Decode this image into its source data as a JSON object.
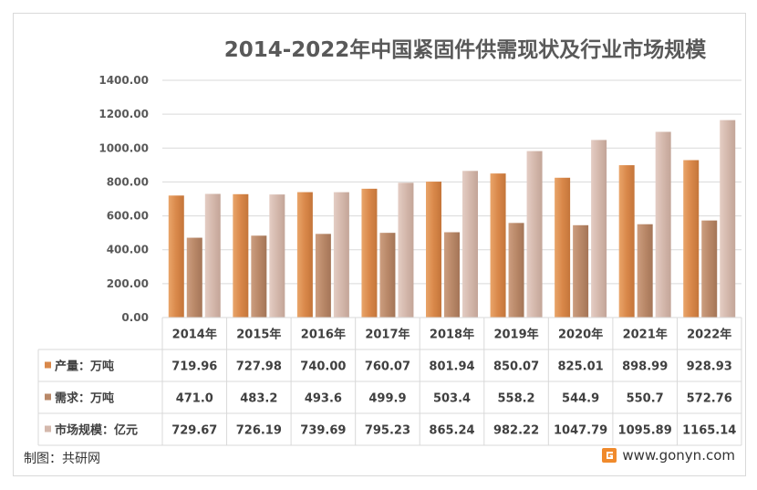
{
  "chart_data": {
    "type": "bar",
    "title": "2014-2022年中国紧固件供需现状及行业市场规模",
    "categories": [
      "2014年",
      "2015年",
      "2016年",
      "2017年",
      "2018年",
      "2019年",
      "2020年",
      "2021年",
      "2022年"
    ],
    "ylim": [
      0,
      1400
    ],
    "yticks": [
      "0.00",
      "200.00",
      "400.00",
      "600.00",
      "800.00",
      "1000.00",
      "1200.00",
      "1400.00"
    ],
    "grid": true,
    "legend_placement": "table-rows-below",
    "series": [
      {
        "name": "产量：万吨",
        "color": "#d9884a",
        "values": [
          719.96,
          727.98,
          740.0,
          760.07,
          801.94,
          850.07,
          825.01,
          898.99,
          928.93
        ],
        "labels": [
          "719.96",
          "727.98",
          "740.00",
          "760.07",
          "801.94",
          "850.07",
          "825.01",
          "898.99",
          "928.93"
        ]
      },
      {
        "name": "需求：万吨",
        "color": "#b98868",
        "values": [
          471.0,
          483.2,
          493.6,
          499.9,
          503.4,
          558.2,
          544.9,
          550.7,
          572.76
        ],
        "labels": [
          "471.0",
          "483.2",
          "493.6",
          "499.9",
          "503.4",
          "558.2",
          "544.9",
          "550.7",
          "572.76"
        ]
      },
      {
        "name": "市场规模：亿元",
        "color": "#d4b8ac",
        "values": [
          729.67,
          726.19,
          739.69,
          795.23,
          865.24,
          982.22,
          1047.79,
          1095.89,
          1165.14
        ],
        "labels": [
          "729.67",
          "726.19",
          "739.69",
          "795.23",
          "865.24",
          "982.22",
          "1047.79",
          "1095.89",
          "1165.14"
        ]
      }
    ]
  },
  "footer": {
    "source": "制图：共研网",
    "website": "www.gonyn.com"
  }
}
